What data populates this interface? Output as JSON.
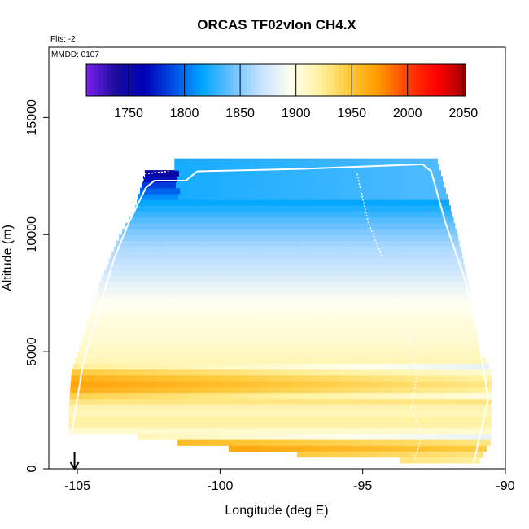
{
  "chart_data": {
    "type": "heatmap",
    "title": "ORCAS TF02vlon CH4.X",
    "flts_label": "Flts: -2",
    "mmdd_label": "MMDD: 0107",
    "xlabel": "Longitude (deg E)",
    "ylabel": "Altitude (m)",
    "xlim": [
      -106,
      -90
    ],
    "ylim": [
      0,
      18000
    ],
    "x_ticks": [
      -105,
      -100,
      -95,
      -90
    ],
    "y_ticks": [
      0,
      5000,
      10000,
      15000
    ],
    "colorbar": {
      "range": [
        1712,
        2052
      ],
      "ticks": [
        1750,
        1800,
        1850,
        1900,
        1950,
        2000,
        2050
      ],
      "palette": [
        "#7b22f0",
        "#1a0c9c",
        "#0000b4",
        "#0050e8",
        "#00a6ff",
        "#6cc2ff",
        "#c7e3ff",
        "#fffff0",
        "#fff2a0",
        "#ffc93a",
        "#ff9a00",
        "#ff4000",
        "#ff0000",
        "#a40000"
      ]
    },
    "envelope_left": [
      [
        -102.6,
        12800
      ],
      [
        -103,
        11000
      ],
      [
        -103.5,
        10000
      ],
      [
        -104.2,
        8000
      ],
      [
        -104.7,
        6000
      ],
      [
        -105.2,
        4200
      ],
      [
        -105.3,
        2600
      ],
      [
        -105.3,
        1400
      ]
    ],
    "envelope_right": [
      [
        -92.4,
        13200
      ],
      [
        -91.9,
        11000
      ],
      [
        -91.5,
        9000
      ],
      [
        -91.2,
        7200
      ],
      [
        -90.9,
        5000
      ],
      [
        -90.5,
        4200
      ],
      [
        -90.5,
        1200
      ],
      [
        -91,
        200
      ]
    ],
    "bottom_profile": [
      [
        -105.3,
        1400
      ],
      [
        -103,
        1400
      ],
      [
        -102,
        1200
      ],
      [
        -100,
        900
      ],
      [
        -98,
        700
      ],
      [
        -96,
        500
      ],
      [
        -94,
        500
      ],
      [
        -93.5,
        300
      ],
      [
        -91,
        200
      ]
    ],
    "altitude_profile": [
      {
        "alt": 12800,
        "ch4": 1740
      },
      {
        "alt": 12300,
        "ch4": 1775
      },
      {
        "alt": 11500,
        "ch4": 1815
      },
      {
        "alt": 10500,
        "ch4": 1840
      },
      {
        "alt": 9500,
        "ch4": 1860
      },
      {
        "alt": 8500,
        "ch4": 1872
      },
      {
        "alt": 7500,
        "ch4": 1890
      },
      {
        "alt": 6500,
        "ch4": 1900
      },
      {
        "alt": 5500,
        "ch4": 1905
      },
      {
        "alt": 4500,
        "ch4": 1915
      },
      {
        "alt": 4000,
        "ch4": 1960
      },
      {
        "alt": 3500,
        "ch4": 1975
      },
      {
        "alt": 3000,
        "ch4": 1935
      },
      {
        "alt": 2500,
        "ch4": 1910
      },
      {
        "alt": 2000,
        "ch4": 1925
      },
      {
        "alt": 1500,
        "ch4": 1900
      },
      {
        "alt": 1000,
        "ch4": 1990
      },
      {
        "alt": 500,
        "ch4": 1960
      }
    ],
    "flight_tracks": [
      [
        [
          -105.2,
          1500
        ],
        [
          -104.8,
          4500
        ],
        [
          -104.2,
          7000
        ],
        [
          -103.7,
          9000
        ],
        [
          -103.2,
          10500
        ],
        [
          -102.6,
          12000
        ],
        [
          -102.3,
          12300
        ],
        [
          -101.2,
          12300
        ],
        [
          -100.8,
          12700
        ],
        [
          -97.2,
          12800
        ],
        [
          -92.9,
          13000
        ],
        [
          -92.6,
          12700
        ],
        [
          -92.1,
          10500
        ],
        [
          -91.4,
          8000
        ],
        [
          -91.0,
          6000
        ],
        [
          -90.6,
          3000
        ],
        [
          -91.1,
          300
        ]
      ],
      [
        [
          -103.5,
          10000
        ],
        [
          -103.0,
          11500
        ],
        [
          -102.6,
          12600
        ],
        [
          -101.8,
          12700
        ]
      ],
      [
        [
          -95.2,
          12600
        ],
        [
          -94.8,
          10500
        ],
        [
          -94.3,
          9000
        ]
      ],
      [
        [
          -93.4,
          5800
        ],
        [
          -93.1,
          4000
        ],
        [
          -93.3,
          2500
        ],
        [
          -92.9,
          1500
        ],
        [
          -93.2,
          400
        ]
      ]
    ],
    "marker_longitude": -105.1,
    "grid": false
  }
}
